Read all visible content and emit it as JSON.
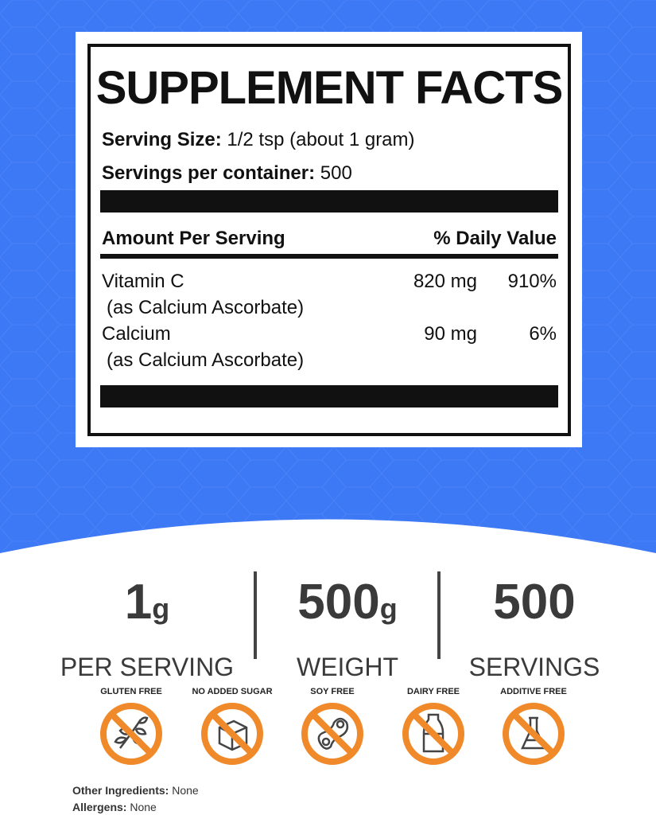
{
  "colors": {
    "background_blue": "#3d78f5",
    "badge_orange": "#f0892a",
    "text_dark": "#111111"
  },
  "facts": {
    "title": "SUPPLEMENT FACTS",
    "serving_size_label": "Serving Size:",
    "serving_size_value": "1/2 tsp (about 1 gram)",
    "servings_label": "Servings per container:",
    "servings_value": "500",
    "header_amount": "Amount Per Serving",
    "header_dv": "% Daily Value",
    "rows": [
      {
        "name": "Vitamin C",
        "source": "(as Calcium Ascorbate)",
        "amount": "820 mg",
        "dv": "910%"
      },
      {
        "name": "Calcium",
        "source": "(as Calcium Ascorbate)",
        "amount": "90 mg",
        "dv": "6%"
      }
    ]
  },
  "stats": [
    {
      "value": "1",
      "unit": "g",
      "label": "PER SERVING"
    },
    {
      "value": "500",
      "unit": "g",
      "label": "WEIGHT"
    },
    {
      "value": "500",
      "unit": "",
      "label": "SERVINGS"
    }
  ],
  "badges": [
    {
      "label": "GLUTEN FREE",
      "icon": "wheat-icon"
    },
    {
      "label": "NO ADDED SUGAR",
      "icon": "sugar-cube-icon"
    },
    {
      "label": "SOY FREE",
      "icon": "soybean-icon"
    },
    {
      "label": "DAIRY FREE",
      "icon": "milk-bottle-icon"
    },
    {
      "label": "ADDITIVE FREE",
      "icon": "flask-icon"
    }
  ],
  "footer": {
    "other_label": "Other Ingredients:",
    "other_value": "None",
    "allergens_label": "Allergens:",
    "allergens_value": "None"
  }
}
